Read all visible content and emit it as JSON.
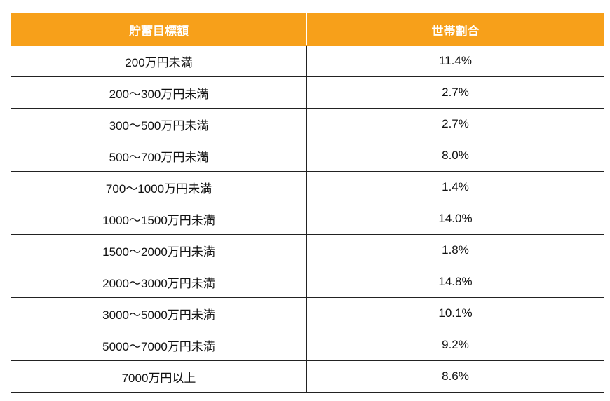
{
  "table": {
    "header": [
      "貯蓄目標額",
      "世帯割合"
    ],
    "rows": [
      [
        "200万円未満",
        "11.4%"
      ],
      [
        "200～300万円未満",
        "2.7%"
      ],
      [
        "300～500万円未満",
        "2.7%"
      ],
      [
        "500～700万円未満",
        "8.0%"
      ],
      [
        "700～1000万円未満",
        "1.4%"
      ],
      [
        "1000～1500万円未満",
        "14.0%"
      ],
      [
        "1500～2000万円未満",
        "1.8%"
      ],
      [
        "2000～3000万円未満",
        "14.8%"
      ],
      [
        "3000～5000万円未満",
        "10.1%"
      ],
      [
        "5000～7000万円未満",
        "9.2%"
      ],
      [
        "7000万円以上",
        "8.6%"
      ]
    ]
  }
}
